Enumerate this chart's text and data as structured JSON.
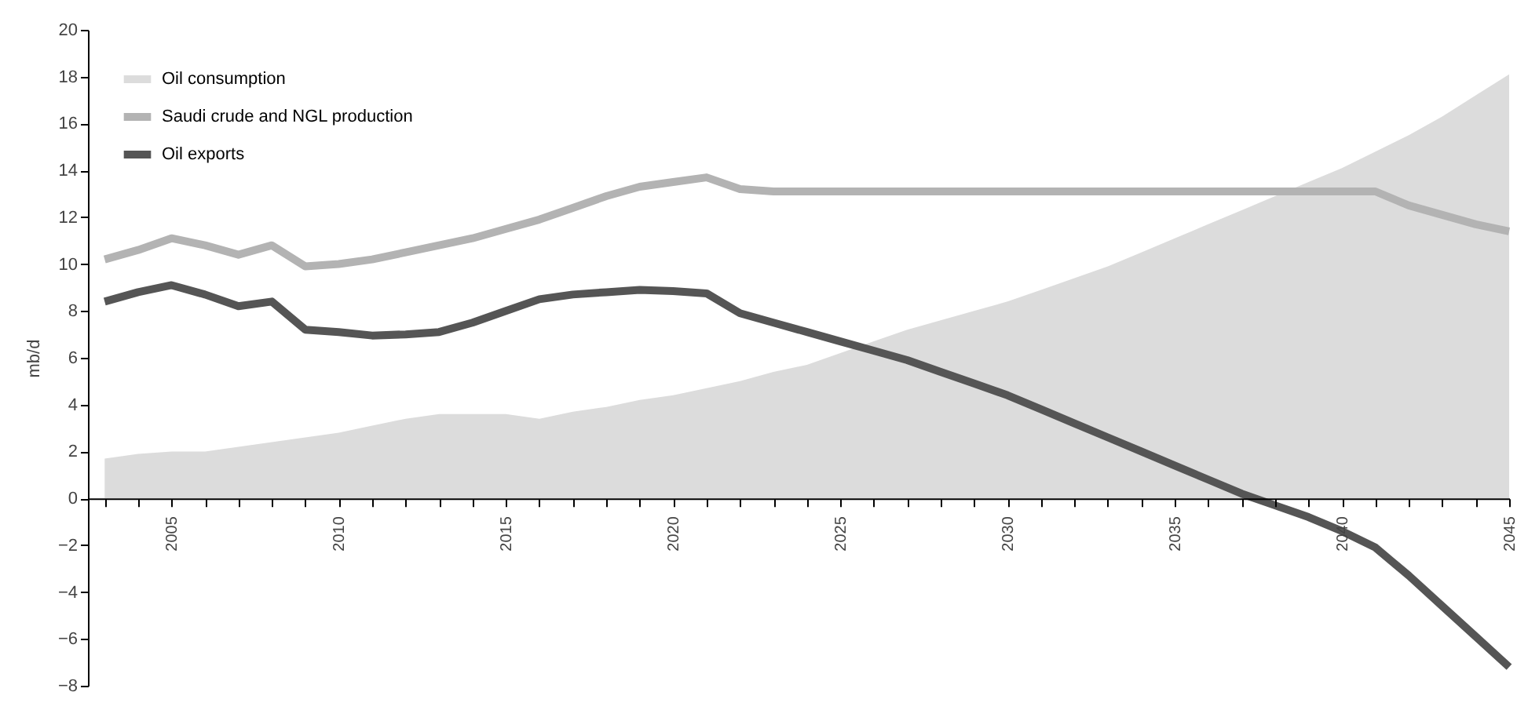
{
  "chart_data": {
    "type": "line",
    "ylabel": "mb/d",
    "legend": "top left",
    "grid": false,
    "x": [
      2003,
      2004,
      2005,
      2006,
      2007,
      2008,
      2009,
      2010,
      2011,
      2012,
      2013,
      2014,
      2015,
      2016,
      2017,
      2018,
      2019,
      2020,
      2021,
      2022,
      2023,
      2024,
      2025,
      2026,
      2027,
      2028,
      2029,
      2030,
      2031,
      2032,
      2033,
      2034,
      2035,
      2036,
      2037,
      2038,
      2039,
      2040,
      2041,
      2042,
      2043,
      2044,
      2045
    ],
    "xlim": [
      2002.5,
      2045
    ],
    "ylim": [
      -8,
      20
    ],
    "yticks": [
      -8,
      -6,
      -4,
      -2,
      0,
      2,
      4,
      6,
      8,
      10,
      12,
      14,
      16,
      18,
      20
    ],
    "xticks": [
      {
        "value": 2003,
        "label": null
      },
      {
        "value": 2004,
        "label": null
      },
      2005,
      {
        "value": 2006,
        "label": null
      },
      {
        "value": 2007,
        "label": null
      },
      {
        "value": 2008,
        "label": null
      },
      {
        "value": 2009,
        "label": null
      },
      2010,
      {
        "value": 2011,
        "label": null
      },
      {
        "value": 2012,
        "label": null
      },
      {
        "value": 2013,
        "label": null
      },
      {
        "value": 2014,
        "label": null
      },
      2015,
      {
        "value": 2016,
        "label": null
      },
      {
        "value": 2017,
        "label": null
      },
      {
        "value": 2018,
        "label": null
      },
      {
        "value": 2019,
        "label": null
      },
      2020,
      {
        "value": 2021,
        "label": null
      },
      {
        "value": 2022,
        "label": null
      },
      {
        "value": 2023,
        "label": null
      },
      {
        "value": 2024,
        "label": null
      },
      2025,
      {
        "value": 2026,
        "label": null
      },
      {
        "value": 2027,
        "label": null
      },
      {
        "value": 2028,
        "label": null
      },
      {
        "value": 2029,
        "label": null
      },
      2030,
      {
        "value": 2031,
        "label": null
      },
      {
        "value": 2032,
        "label": null
      },
      {
        "value": 2033,
        "label": null
      },
      {
        "value": 2034,
        "label": null
      },
      2035,
      {
        "value": 2036,
        "label": null
      },
      {
        "value": 2037,
        "label": null
      },
      {
        "value": 2038,
        "label": null
      },
      {
        "value": 2039,
        "label": null
      },
      2040,
      {
        "value": 2041,
        "label": null
      },
      {
        "value": 2042,
        "label": null
      },
      {
        "value": 2043,
        "label": null
      },
      {
        "value": 2044,
        "label": null
      },
      2045
    ],
    "series": [
      {
        "name": "Oil consumption",
        "type": "area",
        "color": "#dcdcdc",
        "values": [
          1.7,
          1.9,
          2.0,
          2.0,
          2.2,
          2.4,
          2.6,
          2.8,
          3.1,
          3.4,
          3.6,
          3.6,
          3.6,
          3.4,
          3.7,
          3.9,
          4.2,
          4.4,
          4.7,
          5.0,
          5.4,
          5.7,
          6.2,
          6.7,
          7.2,
          7.6,
          8.0,
          8.4,
          8.9,
          9.4,
          9.9,
          10.5,
          11.1,
          11.7,
          12.3,
          12.9,
          13.5,
          14.1,
          14.8,
          15.5,
          16.3,
          17.2,
          18.1
        ]
      },
      {
        "name": "Saudi crude and NGL production",
        "color": "#b3b3b3",
        "values": [
          10.2,
          10.6,
          11.1,
          10.8,
          10.4,
          10.8,
          9.9,
          10.0,
          10.2,
          10.5,
          10.8,
          11.1,
          11.5,
          11.9,
          12.4,
          12.9,
          13.3,
          13.5,
          13.7,
          13.2,
          13.1,
          13.1,
          13.1,
          13.1,
          13.1,
          13.1,
          13.1,
          13.1,
          13.1,
          13.1,
          13.1,
          13.1,
          13.1,
          13.1,
          13.1,
          13.1,
          13.1,
          13.1,
          13.1,
          12.5,
          12.1,
          11.7,
          11.4
        ]
      },
      {
        "name": "Oil exports",
        "color": "#555555",
        "values": [
          8.4,
          8.8,
          9.1,
          8.7,
          8.2,
          8.4,
          7.2,
          7.1,
          6.95,
          7.0,
          7.1,
          7.5,
          8.0,
          8.5,
          8.7,
          8.8,
          8.9,
          8.85,
          8.75,
          7.9,
          7.5,
          7.1,
          6.7,
          6.3,
          5.9,
          5.4,
          4.9,
          4.4,
          3.8,
          3.2,
          2.6,
          2.0,
          1.4,
          0.8,
          0.2,
          -0.3,
          -0.8,
          -1.4,
          -2.1,
          -3.3,
          -4.6,
          -5.9,
          -7.2
        ]
      }
    ]
  }
}
